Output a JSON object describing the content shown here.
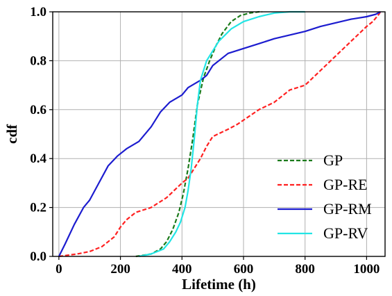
{
  "chart_data": {
    "type": "line",
    "title": "",
    "xlabel": "Lifetime (h)",
    "ylabel": "cdf",
    "xlim": [
      -20,
      1060
    ],
    "ylim": [
      0,
      1.0
    ],
    "xticks": [
      0,
      200,
      400,
      600,
      800,
      1000
    ],
    "yticks": [
      0.0,
      0.2,
      0.4,
      0.6,
      0.8,
      1.0
    ],
    "xtick_labels": [
      "0",
      "200",
      "400",
      "600",
      "800",
      "1000"
    ],
    "ytick_labels": [
      "0.0",
      "0.2",
      "0.4",
      "0.6",
      "0.8",
      "1.0"
    ],
    "grid": true,
    "legend_position": "bottom-right",
    "series": [
      {
        "name": "GP",
        "color": "#1a7a1a",
        "dash": "dashed",
        "x": [
          250,
          300,
          330,
          350,
          370,
          390,
          405,
          420,
          435,
          450,
          470,
          490,
          510,
          530,
          560,
          590,
          620,
          650,
          660
        ],
        "y": [
          0.0,
          0.01,
          0.03,
          0.06,
          0.11,
          0.18,
          0.26,
          0.36,
          0.48,
          0.62,
          0.73,
          0.8,
          0.86,
          0.91,
          0.96,
          0.985,
          0.995,
          1.0,
          1.0
        ]
      },
      {
        "name": "GP-RE",
        "color": "#ff2020",
        "dash": "dashed",
        "x": [
          0,
          30,
          60,
          100,
          140,
          180,
          200,
          220,
          250,
          300,
          350,
          400,
          420,
          440,
          460,
          480,
          500,
          550,
          580,
          650,
          700,
          750,
          800,
          850,
          900,
          950,
          1000,
          1020,
          1040,
          1045
        ],
        "y": [
          0.0,
          0.005,
          0.01,
          0.02,
          0.04,
          0.08,
          0.12,
          0.15,
          0.18,
          0.2,
          0.24,
          0.3,
          0.32,
          0.36,
          0.4,
          0.45,
          0.49,
          0.52,
          0.54,
          0.6,
          0.63,
          0.68,
          0.7,
          0.76,
          0.82,
          0.88,
          0.94,
          0.96,
          0.99,
          1.0
        ]
      },
      {
        "name": "GP-RM",
        "color": "#1c1ccf",
        "dash": "solid",
        "x": [
          0,
          20,
          50,
          80,
          100,
          130,
          160,
          190,
          220,
          260,
          300,
          330,
          360,
          400,
          420,
          460,
          480,
          500,
          550,
          600,
          650,
          700,
          800,
          850,
          900,
          950,
          1000,
          1030,
          1045
        ],
        "y": [
          0.0,
          0.05,
          0.13,
          0.2,
          0.23,
          0.3,
          0.37,
          0.41,
          0.44,
          0.47,
          0.53,
          0.59,
          0.63,
          0.66,
          0.69,
          0.72,
          0.74,
          0.78,
          0.83,
          0.85,
          0.87,
          0.89,
          0.92,
          0.94,
          0.955,
          0.97,
          0.98,
          0.99,
          1.0
        ]
      },
      {
        "name": "GP-RV",
        "color": "#22e5e5",
        "dash": "solid",
        "x": [
          260,
          300,
          340,
          360,
          380,
          395,
          410,
          420,
          430,
          440,
          450,
          460,
          480,
          500,
          520,
          560,
          600,
          650,
          700,
          750,
          800
        ],
        "y": [
          0.0,
          0.01,
          0.03,
          0.06,
          0.1,
          0.14,
          0.2,
          0.27,
          0.36,
          0.48,
          0.62,
          0.72,
          0.8,
          0.84,
          0.88,
          0.93,
          0.96,
          0.98,
          0.995,
          1.0,
          1.0
        ]
      }
    ]
  }
}
